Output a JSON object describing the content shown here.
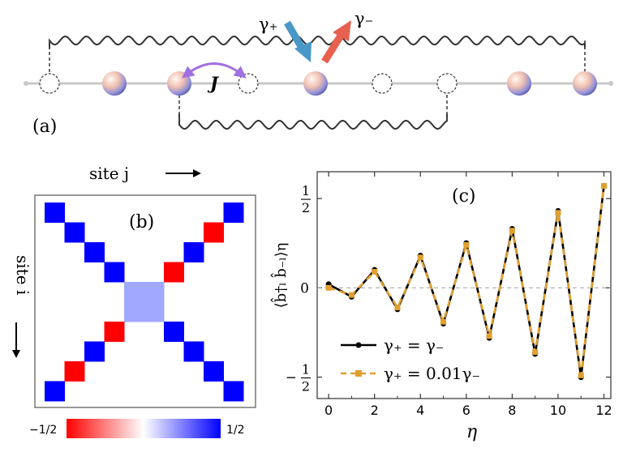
{
  "panel_a": {
    "label": "(a)",
    "gamma_plus": "γ₊",
    "gamma_minus": "γ₋",
    "hopping": "J"
  },
  "panel_b": {
    "label": "(b)",
    "axis_j": "site j",
    "axis_i": "site i",
    "colorbar_min": "−1/2",
    "colorbar_max": "1/2",
    "colors": {
      "negative": "#ff0000",
      "positive": "#0000ff",
      "center": "#a0a8ff"
    },
    "matrix_cells": [
      {
        "i": 0,
        "j": 0,
        "value": 0.5
      },
      {
        "i": 0,
        "j": 9,
        "value": 0.5
      },
      {
        "i": 1,
        "j": 1,
        "value": 0.5
      },
      {
        "i": 1,
        "j": 8,
        "value": -0.5
      },
      {
        "i": 2,
        "j": 2,
        "value": 0.5
      },
      {
        "i": 2,
        "j": 7,
        "value": 0.5
      },
      {
        "i": 3,
        "j": 3,
        "value": 0.5
      },
      {
        "i": 3,
        "j": 6,
        "value": -0.5
      },
      {
        "i": 4,
        "j": 4,
        "value": 0.25
      },
      {
        "i": 4,
        "j": 5,
        "value": 0.25
      },
      {
        "i": 5,
        "j": 4,
        "value": 0.25
      },
      {
        "i": 5,
        "j": 5,
        "value": 0.25
      },
      {
        "i": 6,
        "j": 3,
        "value": -0.5
      },
      {
        "i": 6,
        "j": 6,
        "value": 0.5
      },
      {
        "i": 7,
        "j": 2,
        "value": 0.5
      },
      {
        "i": 7,
        "j": 7,
        "value": 0.5
      },
      {
        "i": 8,
        "j": 1,
        "value": -0.5
      },
      {
        "i": 8,
        "j": 8,
        "value": 0.5
      },
      {
        "i": 9,
        "j": 0,
        "value": 0.5
      },
      {
        "i": 9,
        "j": 9,
        "value": 0.5
      }
    ]
  },
  "chart_data": {
    "type": "line",
    "panel_label": "(c)",
    "xlabel": "η",
    "ylabel": "⟨b̂†ₗ b̂₋ₗ⟩η",
    "xlim": [
      -0.5,
      12.3
    ],
    "ylim": [
      -0.62,
      0.65
    ],
    "xticks": [
      "0",
      "2",
      "4",
      "6",
      "8",
      "10",
      "12"
    ],
    "yticks": [
      {
        "value": 0.5,
        "num": "1",
        "den": "2",
        "sign": ""
      },
      {
        "value": 0,
        "text": "0"
      },
      {
        "value": -0.5,
        "num": "1",
        "den": "2",
        "sign": "−"
      }
    ],
    "x": [
      0,
      1,
      2,
      3,
      4,
      5,
      6,
      7,
      8,
      9,
      10,
      11,
      12
    ],
    "series": [
      {
        "name": "γ₊ = γ₋",
        "color": "#000000",
        "values": [
          0.02,
          -0.05,
          0.1,
          -0.12,
          0.18,
          -0.2,
          0.25,
          -0.28,
          0.33,
          -0.37,
          0.43,
          -0.5,
          0.57
        ]
      },
      {
        "name": "γ₊ = 0.01γ₋",
        "color": "#e0a030",
        "values": [
          0.0,
          -0.04,
          0.09,
          -0.11,
          0.17,
          -0.19,
          0.24,
          -0.27,
          0.32,
          -0.36,
          0.42,
          -0.49,
          0.57
        ]
      }
    ],
    "legend": "bottom-left",
    "zero_line": true
  }
}
